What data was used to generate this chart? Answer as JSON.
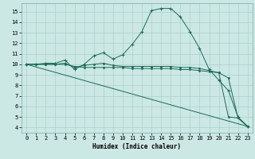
{
  "xlabel": "Humidex (Indice chaleur)",
  "background_color": "#cce8e4",
  "grid_color": "#aad0cc",
  "line_color": "#1a6b5a",
  "xlim": [
    -0.5,
    23.5
  ],
  "ylim": [
    3.5,
    15.8
  ],
  "xticks": [
    0,
    1,
    2,
    3,
    4,
    5,
    6,
    7,
    8,
    9,
    10,
    11,
    12,
    13,
    14,
    15,
    16,
    17,
    18,
    19,
    20,
    21,
    22,
    23
  ],
  "yticks": [
    4,
    5,
    6,
    7,
    8,
    9,
    10,
    11,
    12,
    13,
    14,
    15
  ],
  "series": {
    "line1_x": [
      0,
      1,
      2,
      3,
      4,
      5,
      6,
      7,
      8,
      9,
      10,
      11,
      12,
      13,
      14,
      15,
      16,
      17,
      18,
      19,
      20,
      21,
      22,
      23
    ],
    "line1_y": [
      10.0,
      10.0,
      10.1,
      10.1,
      10.4,
      9.5,
      10.0,
      10.8,
      11.1,
      10.5,
      10.9,
      11.9,
      13.1,
      15.1,
      15.3,
      15.3,
      14.5,
      13.1,
      11.5,
      9.5,
      8.5,
      7.5,
      5.0,
      4.1
    ],
    "line2_x": [
      0,
      1,
      2,
      3,
      4,
      5,
      6,
      7,
      8,
      9,
      10,
      11,
      12,
      13,
      14,
      15,
      16,
      17,
      18,
      19,
      20,
      21,
      22,
      23
    ],
    "line2_y": [
      10.0,
      10.0,
      10.0,
      10.0,
      10.0,
      9.8,
      9.7,
      9.7,
      9.7,
      9.7,
      9.7,
      9.6,
      9.6,
      9.6,
      9.6,
      9.6,
      9.5,
      9.5,
      9.4,
      9.3,
      9.2,
      8.7,
      4.9,
      4.1
    ],
    "line3_x": [
      0,
      1,
      2,
      3,
      4,
      5,
      6,
      7,
      8,
      9,
      10,
      11,
      12,
      13,
      14,
      15,
      16,
      17,
      18,
      19,
      20,
      21,
      22,
      23
    ],
    "line3_y": [
      10.0,
      10.0,
      10.0,
      10.0,
      10.1,
      9.7,
      9.9,
      10.0,
      10.1,
      9.9,
      9.8,
      9.8,
      9.8,
      9.8,
      9.8,
      9.8,
      9.7,
      9.7,
      9.6,
      9.4,
      9.2,
      5.0,
      4.9,
      4.1
    ],
    "line4_x": [
      0,
      23
    ],
    "line4_y": [
      10.0,
      4.1
    ]
  }
}
